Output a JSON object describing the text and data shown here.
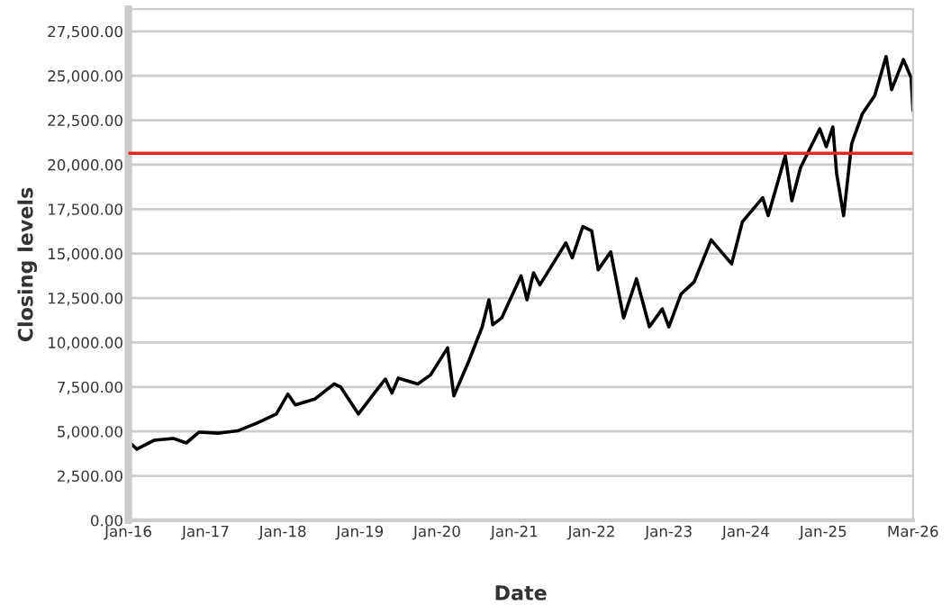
{
  "chart_data": {
    "type": "line",
    "xlabel": "Date",
    "ylabel": "Closing levels",
    "x": [
      "2016-01-05",
      "2016-02-10",
      "2016-05-01",
      "2016-08-01",
      "2016-10-01",
      "2016-12-01",
      "2017-03-01",
      "2017-06-01",
      "2017-09-01",
      "2017-12-01",
      "2018-01-25",
      "2018-03-01",
      "2018-06-01",
      "2018-09-01",
      "2018-10-01",
      "2018-12-24",
      "2019-04-01",
      "2019-05-01",
      "2019-06-01",
      "2019-07-01",
      "2019-10-01",
      "2019-12-01",
      "2020-02-19",
      "2020-03-20",
      "2020-06-01",
      "2020-08-01",
      "2020-09-02",
      "2020-09-20",
      "2020-11-01",
      "2021-02-01",
      "2021-03-01",
      "2021-04-01",
      "2021-05-01",
      "2021-09-01",
      "2021-10-01",
      "2021-11-20",
      "2022-01-01",
      "2022-02-01",
      "2022-04-01",
      "2022-06-01",
      "2022-08-01",
      "2022-10-01",
      "2022-12-01",
      "2023-01-01",
      "2023-02-28",
      "2023-05-01",
      "2023-07-20",
      "2023-10-25",
      "2023-12-15",
      "2024-03-20",
      "2024-04-15",
      "2024-07-05",
      "2024-08-05",
      "2024-09-15",
      "2024-12-15",
      "2025-01-15",
      "2025-02-15",
      "2025-03-05",
      "2025-04-07",
      "2025-05-15",
      "2025-07-05",
      "2025-09-01",
      "2025-10-25",
      "2025-11-20",
      "2026-01-15",
      "2026-02-20",
      "2026-03-01"
    ],
    "series": [
      {
        "color": "#000000",
        "values": [
          4400,
          4000,
          4500,
          4600,
          4350,
          4960,
          4900,
          5030,
          5470,
          5980,
          7100,
          6490,
          6820,
          7670,
          7500,
          5980,
          7500,
          7940,
          7160,
          8000,
          7670,
          8180,
          9700,
          7000,
          9020,
          10880,
          12400,
          11000,
          11380,
          13750,
          12400,
          13920,
          13240,
          15600,
          14760,
          16520,
          16280,
          14090,
          15100,
          11380,
          13580,
          10880,
          11890,
          10880,
          12730,
          13410,
          15770,
          14420,
          16790,
          18140,
          17130,
          20500,
          17970,
          19830,
          22020,
          21010,
          22120,
          19490,
          17130,
          21180,
          22870,
          23880,
          26080,
          24220,
          25910,
          24900,
          23040
        ]
      }
    ],
    "xlim": [
      "2016-01-01",
      "2026-03-01"
    ],
    "xticks": [
      {
        "value": "2016-01-01",
        "label": "Jan-16"
      },
      {
        "value": "2017-01-01",
        "label": "Jan-17"
      },
      {
        "value": "2018-01-01",
        "label": "Jan-18"
      },
      {
        "value": "2019-01-01",
        "label": "Jan-19"
      },
      {
        "value": "2020-01-01",
        "label": "Jan-20"
      },
      {
        "value": "2021-01-01",
        "label": "Jan-21"
      },
      {
        "value": "2022-01-01",
        "label": "Jan-22"
      },
      {
        "value": "2023-01-01",
        "label": "Jan-23"
      },
      {
        "value": "2024-01-01",
        "label": "Jan-24"
      },
      {
        "value": "2025-01-01",
        "label": "Jan-25"
      },
      {
        "value": "2026-03-01",
        "label": "Mar-26"
      }
    ],
    "ylim": [
      0,
      28750
    ],
    "yticks": [
      {
        "value": 0,
        "label": "0.00"
      },
      {
        "value": 2500,
        "label": "2,500.00"
      },
      {
        "value": 5000,
        "label": "5,000.00"
      },
      {
        "value": 7500,
        "label": "7,500.00"
      },
      {
        "value": 10000,
        "label": "10,000.00"
      },
      {
        "value": 12500,
        "label": "12,500.00"
      },
      {
        "value": 15000,
        "label": "15,000.00"
      },
      {
        "value": 17500,
        "label": "17,500.00"
      },
      {
        "value": 20000,
        "label": "20,000.00"
      },
      {
        "value": 22500,
        "label": "22,500.00"
      },
      {
        "value": 25000,
        "label": "25,000.00"
      },
      {
        "value": 27500,
        "label": "27,500.00"
      }
    ],
    "grid": "y",
    "legend": false,
    "marker": "none",
    "line_style": "solid",
    "ref_lines": [
      {
        "axis": "y",
        "value": 20640,
        "color": "#e8251f",
        "line_style": "solid"
      }
    ]
  }
}
